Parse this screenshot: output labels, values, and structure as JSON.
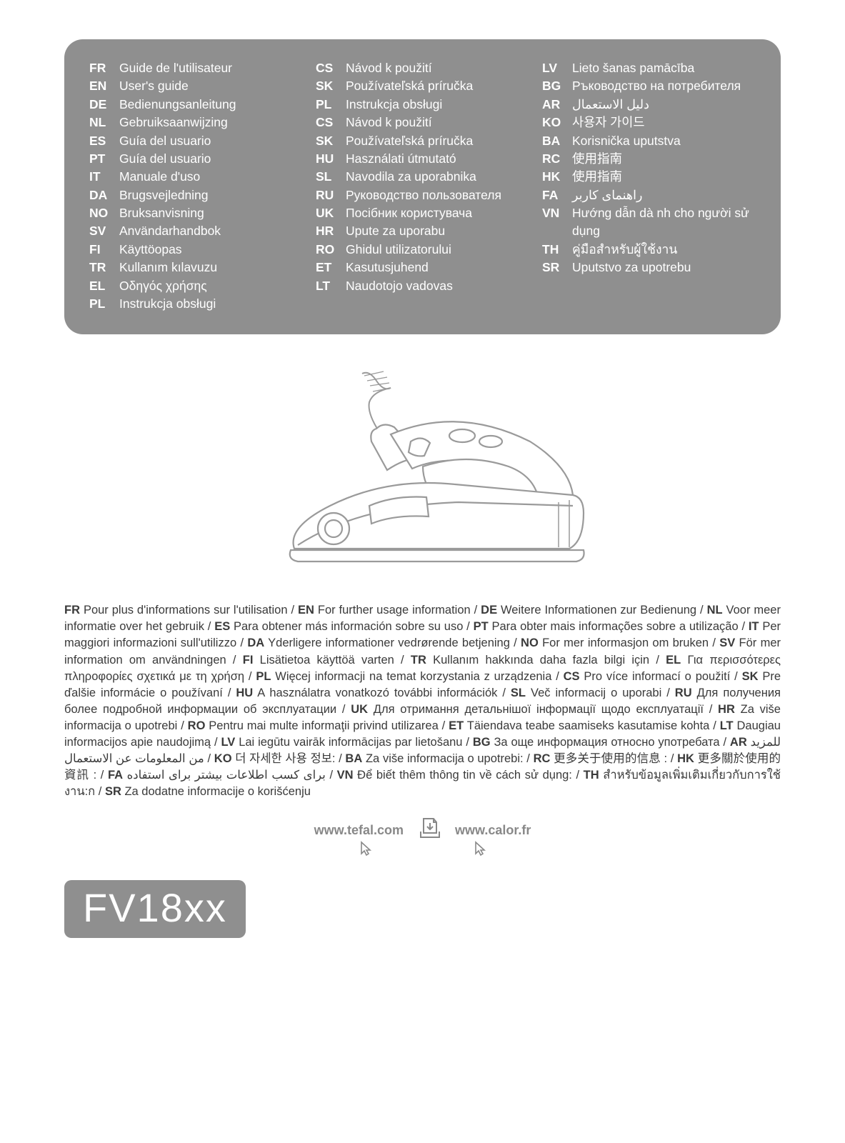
{
  "panel": {
    "background_color": "#8f8f8f",
    "text_color": "#ffffff",
    "columns": [
      [
        {
          "code": "FR",
          "label": "Guide de l'utilisateur"
        },
        {
          "code": "EN",
          "label": "User's guide"
        },
        {
          "code": "DE",
          "label": "Bedienungsanleitung"
        },
        {
          "code": "NL",
          "label": "Gebruiksaanwijzing"
        },
        {
          "code": "ES",
          "label": "Guía del usuario"
        },
        {
          "code": "PT",
          "label": "Guía del usuario"
        },
        {
          "code": "IT",
          "label": "Manuale d'uso"
        },
        {
          "code": "DA",
          "label": "Brugsvejledning"
        },
        {
          "code": "NO",
          "label": "Bruksanvisning"
        },
        {
          "code": "SV",
          "label": "Användarhandbok"
        },
        {
          "code": "FI",
          "label": "Käyttöopas"
        },
        {
          "code": "TR",
          "label": "Kullanım kılavuzu"
        },
        {
          "code": "EL",
          "label": "Οδηγός χρήσης"
        },
        {
          "code": "PL",
          "label": "Instrukcja obsługi"
        }
      ],
      [
        {
          "code": "CS",
          "label": "Návod k použití"
        },
        {
          "code": "SK",
          "label": "Používateľská príručka"
        },
        {
          "code": "PL",
          "label": "Instrukcja obsługi"
        },
        {
          "code": "CS",
          "label": "Návod k použití"
        },
        {
          "code": "SK",
          "label": "Používateľská príručka"
        },
        {
          "code": "HU",
          "label": "Használati útmutató"
        },
        {
          "code": "SL",
          "label": "Navodila za uporabnika"
        },
        {
          "code": "RU",
          "label": "Руководство пользователя"
        },
        {
          "code": "UK",
          "label": "Посібник користувача"
        },
        {
          "code": "HR",
          "label": "Upute za uporabu"
        },
        {
          "code": "RO",
          "label": "Ghidul utilizatorului"
        },
        {
          "code": "ET",
          "label": "Kasutusjuhend"
        },
        {
          "code": "LT",
          "label": "Naudotojo vadovas"
        }
      ],
      [
        {
          "code": "LV",
          "label": "Lieto šanas pamācība"
        },
        {
          "code": "BG",
          "label": "Ръководство на потребителя"
        },
        {
          "code": "AR",
          "label": "دليل الاستعمال"
        },
        {
          "code": "KO",
          "label": "사용자 가이드"
        },
        {
          "code": "BA",
          "label": "Korisnička uputstva"
        },
        {
          "code": "RC",
          "label": "使用指南"
        },
        {
          "code": "HK",
          "label": "使用指南"
        },
        {
          "code": "FA",
          "label": "راهنمای کاربر"
        },
        {
          "code": "VN",
          "label": "Hướng dẫn dà nh cho người sử dụng"
        },
        {
          "code": "TH",
          "label": "คู่มือสำหรับผู้ใช้งาน"
        },
        {
          "code": "SR",
          "label": "Uputstvo za upotrebu"
        }
      ]
    ]
  },
  "info_entries": [
    {
      "code": "FR",
      "text": "Pour plus d'informations sur l'utilisation"
    },
    {
      "code": "EN",
      "text": "For further usage information"
    },
    {
      "code": "DE",
      "text": "Weitere Informationen zur Bedienung"
    },
    {
      "code": "NL",
      "text": "Voor meer informatie over het gebruik"
    },
    {
      "code": "ES",
      "text": "Para obtener más información sobre su uso"
    },
    {
      "code": "PT",
      "text": "Para obter mais informações sobre a utilização"
    },
    {
      "code": "IT",
      "text": "Per maggiori informazioni sull'utilizzo"
    },
    {
      "code": "DA",
      "text": "Yderligere informationer vedrørende betjening"
    },
    {
      "code": "NO",
      "text": "For mer informasjon om bruken"
    },
    {
      "code": "SV",
      "text": "För mer information om användningen"
    },
    {
      "code": "FI",
      "text": "Lisätietoa käyttöä varten"
    },
    {
      "code": "TR",
      "text": "Kullanım hakkında daha fazla bilgi için"
    },
    {
      "code": "EL",
      "text": "Για περισσότερες πληροφορίες σχετικά με τη χρήση"
    },
    {
      "code": "PL",
      "text": "Więcej informacji na temat korzystania z urządzenia"
    },
    {
      "code": "CS",
      "text": "Pro více informací o použití"
    },
    {
      "code": "SK",
      "text": "Pre ďalšie informácie o používaní"
    },
    {
      "code": "HU",
      "text": "A használatra vonatkozó további információk"
    },
    {
      "code": "SL",
      "text": "Več informacij o uporabi"
    },
    {
      "code": "RU",
      "text": "Для получения более подробной информации об эксплуатации"
    },
    {
      "code": "UK",
      "text": "Для отримання детальнішої інформації щодо експлуатації"
    },
    {
      "code": "HR",
      "text": "Za više informacija o upotrebi"
    },
    {
      "code": "RO",
      "text": "Pentru mai multe informaţii privind utilizarea"
    },
    {
      "code": "ET",
      "text": "Täiendava teabe saamiseks kasutamise kohta"
    },
    {
      "code": "LT",
      "text": "Daugiau informacijos apie naudojimą"
    },
    {
      "code": "LV",
      "text": "Lai iegūtu vairāk informācijas par lietošanu"
    },
    {
      "code": "BG",
      "text": "За още информация относно употребата"
    },
    {
      "code": "AR",
      "text": "للمزيد من المعلومات عن الاستعمال"
    },
    {
      "code": "KO",
      "text": "더 자세한 사용 정보:"
    },
    {
      "code": "BA",
      "text": "Za više informacija o upotrebi:"
    },
    {
      "code": "RC",
      "text": "更多关于使用的信息 :"
    },
    {
      "code": "HK",
      "text": "更多關於使用的資訊 :"
    },
    {
      "code": "FA",
      "text": "برای کسب اطلاعات بیشتر برای استفاده"
    },
    {
      "code": "VN",
      "text": "Để biết thêm thông tin về cách sử dụng:"
    },
    {
      "code": "TH",
      "text": "สำหรับข้อมูลเพิ่มเติมเกี่ยวกับการใช้งาน:ก"
    },
    {
      "code": "SR",
      "text": "Za dodatne informacije o korišćenju"
    }
  ],
  "websites": {
    "url1": "www.tefal.com",
    "url2": "www.calor.fr"
  },
  "model": "FV18xx",
  "illustration": {
    "stroke_color": "#9a9a9a",
    "fill_color": "#ffffff"
  }
}
